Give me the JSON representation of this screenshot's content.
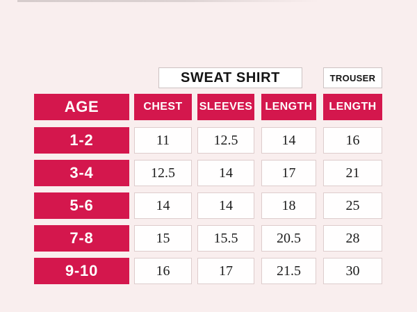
{
  "colors": {
    "background": "#f9eeee",
    "accent": "#d4174d",
    "header_text": "#ffffff",
    "value_text": "#1c1c1c",
    "box_border": "#ddcccc"
  },
  "group_headers": {
    "sweatshirt": "SWEAT SHIRT",
    "trouser": "TROUSER"
  },
  "chart_data": {
    "type": "table",
    "group_headers": [
      "SWEAT SHIRT",
      "TROUSER"
    ],
    "columns": [
      "AGE",
      "CHEST",
      "SLEEVES",
      "LENGTH",
      "LENGTH"
    ],
    "rows": [
      [
        "1-2",
        "11",
        "12.5",
        "14",
        "16"
      ],
      [
        "3-4",
        "12.5",
        "14",
        "17",
        "21"
      ],
      [
        "5-6",
        "14",
        "14",
        "18",
        "25"
      ],
      [
        "7-8",
        "15",
        "15.5",
        "20.5",
        "28"
      ],
      [
        "9-10",
        "16",
        "17",
        "21.5",
        "30"
      ]
    ]
  }
}
